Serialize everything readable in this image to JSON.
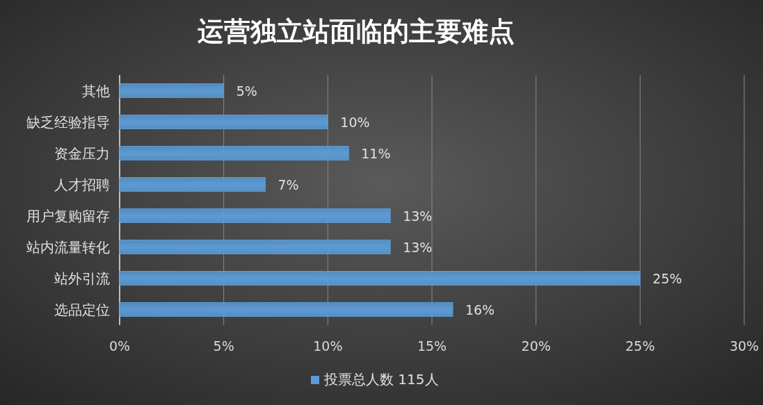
{
  "chart_data": {
    "type": "bar",
    "orientation": "horizontal",
    "title": "运营独立站面临的主要难点",
    "categories": [
      "其他",
      "缺乏经验指导",
      "资金压力",
      "人才招聘",
      "用户复购留存",
      "站内流量转化",
      "站外引流",
      "选品定位"
    ],
    "series": [
      {
        "name": "投票总人数 115人",
        "color": "#5b9bd5",
        "values": [
          5,
          10,
          11,
          7,
          13,
          13,
          25,
          16
        ],
        "value_labels": [
          "5%",
          "10%",
          "11%",
          "7%",
          "13%",
          "13%",
          "25%",
          "16%"
        ]
      }
    ],
    "xlim": [
      0,
      30
    ],
    "xticks": [
      {
        "value": 0,
        "label": "0%"
      },
      {
        "value": 5,
        "label": "5%"
      },
      {
        "value": 10,
        "label": "10%"
      },
      {
        "value": 15,
        "label": "15%"
      },
      {
        "value": 20,
        "label": "20%"
      },
      {
        "value": 25,
        "label": "25%"
      },
      {
        "value": 30,
        "label": "30%"
      }
    ],
    "grid": "x",
    "legend": "bottom"
  }
}
